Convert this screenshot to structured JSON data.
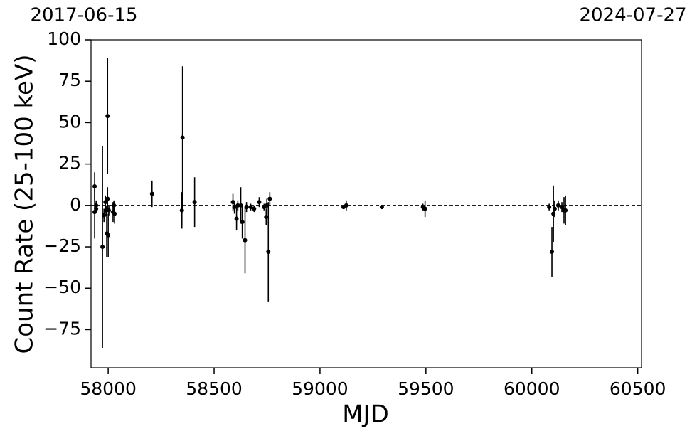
{
  "chart_data": {
    "type": "errorbar",
    "x_label": "MJD",
    "y_label": "Count Rate (25-100 keV)",
    "top_labels": [
      "2017-06-15",
      "2024-07-27"
    ],
    "x": [
      57936,
      57936,
      57943,
      57943,
      57973,
      57980,
      57987,
      57990,
      57993,
      57997,
      57997,
      58000,
      58003,
      58023,
      58027,
      58030,
      58207,
      58348,
      58351,
      58408,
      58589,
      58596,
      58606,
      58612,
      58626,
      58633,
      58646,
      58653,
      58673,
      58689,
      58713,
      58736,
      58746,
      58749,
      58756,
      58763,
      59111,
      59124,
      59292,
      59486,
      59496,
      60082,
      60095,
      60102,
      60108,
      60125,
      60142,
      60152,
      60159
    ],
    "values": [
      11.5,
      -4,
      0,
      -2,
      -25,
      -6,
      2,
      -3,
      -17,
      54,
      4,
      -18,
      -3,
      -4,
      0,
      -5,
      7,
      -3,
      41,
      2,
      2,
      -1,
      -8,
      0,
      0,
      -10,
      -21,
      -1,
      -1,
      -2,
      2,
      -1,
      -7,
      0,
      -28,
      4,
      -1,
      0,
      -1,
      -1,
      -2,
      -1,
      -28,
      -5,
      -2,
      0,
      -1,
      -3,
      -3
    ],
    "errors": [
      8.5,
      16,
      3,
      2,
      61,
      4,
      4,
      3,
      14,
      35,
      7,
      13,
      3,
      6,
      3,
      6,
      8,
      11,
      43,
      15,
      5,
      4,
      7,
      3,
      11,
      10,
      20,
      3,
      2,
      2,
      3,
      2,
      5,
      4,
      30,
      4,
      1,
      3,
      1,
      2,
      5,
      2,
      15,
      17,
      5,
      3,
      3,
      8,
      9
    ],
    "color": "#000000",
    "reference_line": 0,
    "xlim": [
      57919,
      60518
    ],
    "xticks": [
      58000,
      58500,
      59000,
      59500,
      60000,
      60500
    ],
    "ylim": [
      -98,
      100
    ],
    "yticks": [
      {
        "value": -75,
        "label": "−75"
      },
      {
        "value": -50,
        "label": "−50"
      },
      {
        "value": -25,
        "label": "−25"
      },
      0,
      25,
      50,
      75,
      100
    ]
  }
}
